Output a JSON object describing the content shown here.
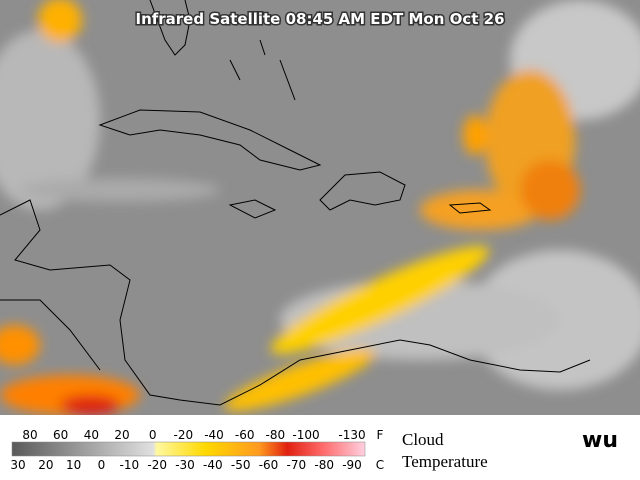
{
  "header": {
    "title": "Infrared Satellite 08:45 AM EDT Mon Oct 26"
  },
  "legend": {
    "fahrenheit": [
      80,
      60,
      40,
      20,
      0,
      -20,
      -40,
      -60,
      -80,
      -100,
      -130
    ],
    "fahrenheit_unit": "F",
    "celsius": [
      30,
      20,
      10,
      0,
      -10,
      -20,
      -30,
      -40,
      -50,
      -60,
      -70,
      -80,
      -90
    ],
    "celsius_unit": "C",
    "caption_line1": "Cloud",
    "caption_line2": "Temperature"
  },
  "logo": "wu"
}
